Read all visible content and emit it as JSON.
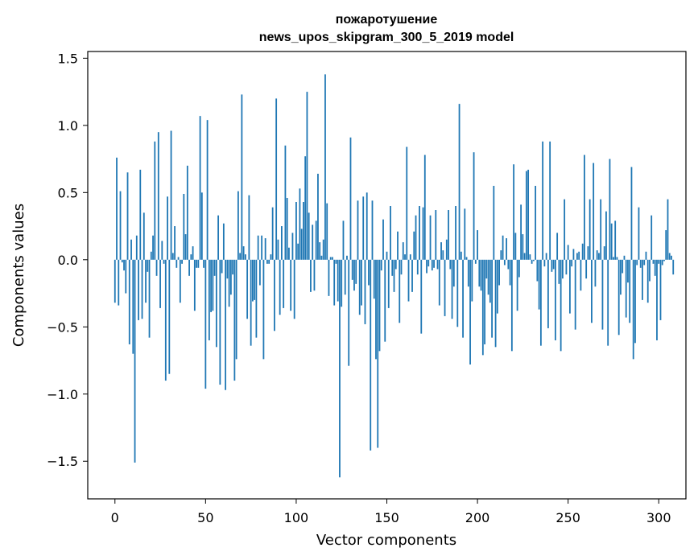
{
  "chart_data": {
    "type": "bar",
    "title_line1": "пожаротушение",
    "title_line2": "news_upos_skipgram_300_5_2019 model",
    "xlabel": "Vector components",
    "ylabel": "Components values",
    "xlim": [
      -15,
      315
    ],
    "ylim": [
      -1.78,
      1.55
    ],
    "xticks": [
      0,
      50,
      100,
      150,
      200,
      250,
      300
    ],
    "xtick_labels": [
      "0",
      "50",
      "100",
      "150",
      "200",
      "250",
      "300"
    ],
    "yticks": [
      -1.5,
      -1.0,
      -0.5,
      0.0,
      0.5,
      1.0,
      1.5
    ],
    "ytick_labels": [
      "−1.5",
      "−1.0",
      "−0.5",
      "0.0",
      "0.5",
      "1.0",
      "1.5"
    ],
    "bar_color": "#1f77b4",
    "x_start": 0,
    "values": [
      -0.32,
      0.76,
      -0.34,
      0.51,
      -0.02,
      -0.08,
      -0.25,
      0.65,
      -0.63,
      0.15,
      -0.7,
      -1.51,
      0.18,
      -0.45,
      0.67,
      -0.44,
      0.35,
      -0.32,
      -0.09,
      -0.58,
      0.06,
      0.18,
      0.88,
      -0.12,
      0.95,
      -0.36,
      0.14,
      -0.03,
      -0.9,
      0.47,
      -0.85,
      0.96,
      0.05,
      0.25,
      -0.06,
      0.02,
      -0.32,
      -0.03,
      0.49,
      0.19,
      0.7,
      -0.12,
      0.04,
      0.1,
      -0.38,
      -0.06,
      -0.06,
      1.07,
      0.5,
      -0.06,
      -0.96,
      1.04,
      -0.6,
      -0.39,
      -0.38,
      -0.12,
      -0.65,
      0.33,
      -0.93,
      -0.1,
      0.27,
      -0.97,
      -0.14,
      -0.35,
      -0.26,
      -0.11,
      -0.9,
      -0.74,
      0.51,
      0.05,
      1.23,
      0.1,
      0.04,
      -0.44,
      0.48,
      -0.64,
      -0.31,
      -0.3,
      -0.58,
      0.18,
      -0.19,
      0.18,
      -0.74,
      0.16,
      -0.03,
      -0.03,
      0.04,
      0.39,
      -0.53,
      1.2,
      0.15,
      -0.41,
      0.25,
      -0.36,
      0.85,
      0.46,
      0.09,
      -0.38,
      0.2,
      -0.44,
      0.43,
      0.12,
      0.53,
      0.23,
      0.43,
      0.77,
      1.25,
      0.35,
      -0.24,
      0.26,
      -0.23,
      0.29,
      0.64,
      0.13,
      0.03,
      0.15,
      1.38,
      0.42,
      -0.27,
      0.02,
      0.02,
      -0.34,
      -0.03,
      -0.31,
      -1.62,
      -0.35,
      0.29,
      -0.26,
      0.03,
      -0.79,
      0.91,
      -0.15,
      -0.23,
      -0.18,
      0.44,
      -0.41,
      -0.34,
      0.47,
      -0.48,
      0.5,
      -0.19,
      -1.42,
      0.44,
      -0.29,
      -0.74,
      -1.4,
      -0.68,
      -0.08,
      0.3,
      -0.61,
      0.06,
      -0.36,
      0.4,
      -0.12,
      -0.24,
      -0.07,
      0.21,
      -0.47,
      -0.11,
      0.13,
      0.04,
      0.84,
      -0.31,
      0.04,
      -0.24,
      0.21,
      0.33,
      -0.11,
      0.4,
      -0.55,
      0.39,
      0.78,
      -0.1,
      -0.05,
      0.33,
      -0.08,
      -0.06,
      0.37,
      -0.07,
      -0.34,
      0.13,
      0.07,
      -0.42,
      0.15,
      0.37,
      -0.07,
      -0.44,
      -0.2,
      0.4,
      -0.5,
      1.16,
      0.06,
      -0.58,
      0.38,
      0.02,
      -0.2,
      -0.78,
      -0.31,
      0.8,
      -0.03,
      0.22,
      -0.2,
      -0.23,
      -0.71,
      -0.63,
      -0.14,
      -0.26,
      -0.32,
      -0.58,
      0.55,
      -0.65,
      -0.4,
      -0.19,
      0.07,
      0.18,
      -0.04,
      0.16,
      -0.07,
      -0.19,
      -0.68,
      0.71,
      0.2,
      -0.38,
      -0.13,
      0.41,
      0.19,
      0.05,
      0.66,
      0.67,
      0.04,
      -0.03,
      -0.01,
      0.55,
      -0.16,
      -0.37,
      -0.64,
      0.88,
      -0.05,
      0.05,
      -0.51,
      0.88,
      -0.09,
      -0.07,
      -0.6,
      0.2,
      -0.18,
      -0.68,
      -0.14,
      0.45,
      -0.11,
      0.11,
      -0.4,
      -0.05,
      0.08,
      -0.52,
      0.05,
      0.06,
      -0.23,
      0.12,
      0.78,
      -0.14,
      0.1,
      0.45,
      -0.47,
      0.72,
      -0.2,
      0.07,
      0.05,
      0.45,
      -0.52,
      0.1,
      0.36,
      -0.64,
      0.75,
      0.27,
      0.02,
      0.29,
      0.02,
      -0.56,
      -0.26,
      -0.1,
      0.03,
      -0.43,
      -0.17,
      -0.47,
      0.69,
      -0.74,
      -0.62,
      -0.04,
      0.39,
      -0.06,
      -0.3,
      -0.04,
      0.06,
      -0.32,
      -0.16,
      0.33,
      -0.03,
      -0.12,
      -0.6,
      -0.03,
      -0.45,
      -0.04,
      -0.01,
      0.22,
      0.45,
      0.05,
      0.03,
      -0.11
    ]
  }
}
